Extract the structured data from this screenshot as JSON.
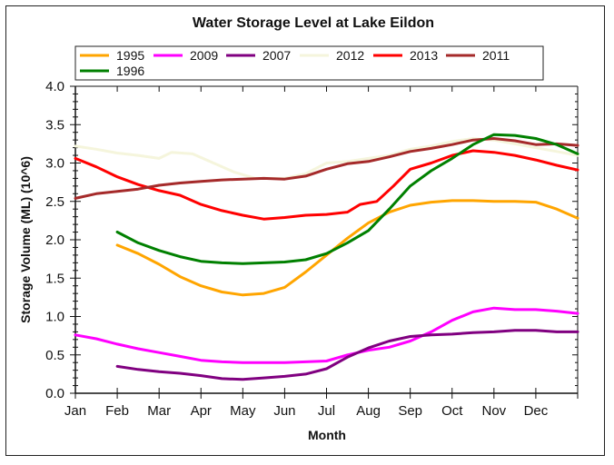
{
  "chart_data": {
    "type": "line",
    "title": "Water Storage Level at Lake Eildon",
    "xlabel": "Month",
    "ylabel": "Storage Volume (ML) (10^6)",
    "x_categories": [
      "Jan",
      "Feb",
      "Mar",
      "Apr",
      "May",
      "Jun",
      "Jul",
      "Aug",
      "Sep",
      "Oct",
      "Nov",
      "Dec"
    ],
    "xlim": [
      0,
      12
    ],
    "ylim": [
      0,
      4.0
    ],
    "y_ticks": [
      "0.0",
      "0.5",
      "1.0",
      "1.5",
      "2.0",
      "2.5",
      "3.0",
      "3.5",
      "4.0"
    ],
    "grid": false,
    "legend_position": "top",
    "series": [
      {
        "name": "1995",
        "color": "#FFA500",
        "points": [
          [
            1,
            1.93
          ],
          [
            1.5,
            1.82
          ],
          [
            2,
            1.68
          ],
          [
            2.5,
            1.52
          ],
          [
            3,
            1.4
          ],
          [
            3.5,
            1.32
          ],
          [
            4,
            1.28
          ],
          [
            4.5,
            1.3
          ],
          [
            5,
            1.38
          ],
          [
            5.5,
            1.58
          ],
          [
            6,
            1.8
          ],
          [
            6.5,
            2.02
          ],
          [
            7,
            2.22
          ],
          [
            7.5,
            2.36
          ],
          [
            8,
            2.45
          ],
          [
            8.5,
            2.49
          ],
          [
            9,
            2.51
          ],
          [
            9.5,
            2.51
          ],
          [
            10,
            2.5
          ],
          [
            10.5,
            2.5
          ],
          [
            11,
            2.49
          ],
          [
            11.5,
            2.4
          ],
          [
            12,
            2.28
          ]
        ]
      },
      {
        "name": "2009",
        "color": "#FF00FF",
        "points": [
          [
            0,
            0.76
          ],
          [
            0.5,
            0.71
          ],
          [
            1,
            0.64
          ],
          [
            1.5,
            0.58
          ],
          [
            2,
            0.53
          ],
          [
            2.5,
            0.48
          ],
          [
            3,
            0.43
          ],
          [
            3.5,
            0.41
          ],
          [
            4,
            0.4
          ],
          [
            4.5,
            0.4
          ],
          [
            5,
            0.4
          ],
          [
            5.5,
            0.41
          ],
          [
            6,
            0.42
          ],
          [
            6.5,
            0.5
          ],
          [
            7,
            0.56
          ],
          [
            7.5,
            0.6
          ],
          [
            8,
            0.68
          ],
          [
            8.5,
            0.8
          ],
          [
            9,
            0.95
          ],
          [
            9.5,
            1.06
          ],
          [
            10,
            1.11
          ],
          [
            10.5,
            1.09
          ],
          [
            11,
            1.09
          ],
          [
            11.5,
            1.07
          ],
          [
            12,
            1.04
          ]
        ]
      },
      {
        "name": "2007",
        "color": "#800080",
        "points": [
          [
            1,
            0.35
          ],
          [
            1.5,
            0.31
          ],
          [
            2,
            0.28
          ],
          [
            2.5,
            0.26
          ],
          [
            3,
            0.23
          ],
          [
            3.5,
            0.19
          ],
          [
            4,
            0.18
          ],
          [
            4.5,
            0.2
          ],
          [
            5,
            0.22
          ],
          [
            5.5,
            0.25
          ],
          [
            6,
            0.32
          ],
          [
            6.5,
            0.47
          ],
          [
            7,
            0.59
          ],
          [
            7.5,
            0.68
          ],
          [
            8,
            0.74
          ],
          [
            8.5,
            0.76
          ],
          [
            9,
            0.77
          ],
          [
            9.5,
            0.79
          ],
          [
            10,
            0.8
          ],
          [
            10.5,
            0.82
          ],
          [
            11,
            0.82
          ],
          [
            11.5,
            0.8
          ],
          [
            12,
            0.8
          ]
        ]
      },
      {
        "name": "2012",
        "color": "#F5F5DC",
        "points": [
          [
            0,
            3.22
          ],
          [
            0.5,
            3.18
          ],
          [
            1,
            3.13
          ],
          [
            1.5,
            3.1
          ],
          [
            2,
            3.06
          ],
          [
            2.3,
            3.14
          ],
          [
            2.8,
            3.12
          ],
          [
            3.3,
            3.0
          ],
          [
            3.8,
            2.88
          ],
          [
            4.3,
            2.8
          ],
          [
            5,
            2.8
          ],
          [
            5.5,
            2.86
          ],
          [
            6,
            3.0
          ],
          [
            6.5,
            3.02
          ],
          [
            7,
            3.06
          ],
          [
            7.5,
            3.1
          ],
          [
            8,
            3.18
          ],
          [
            8.5,
            3.22
          ],
          [
            9,
            3.28
          ],
          [
            9.5,
            3.32
          ],
          [
            10,
            3.3
          ],
          [
            10.5,
            3.25
          ],
          [
            11,
            3.2
          ],
          [
            11.5,
            3.15
          ],
          [
            12,
            3.1
          ]
        ]
      },
      {
        "name": "2013",
        "color": "#FF0000",
        "points": [
          [
            0,
            3.06
          ],
          [
            0.5,
            2.95
          ],
          [
            1,
            2.82
          ],
          [
            1.5,
            2.72
          ],
          [
            2,
            2.64
          ],
          [
            2.5,
            2.58
          ],
          [
            3,
            2.46
          ],
          [
            3.5,
            2.38
          ],
          [
            4,
            2.32
          ],
          [
            4.5,
            2.27
          ],
          [
            5,
            2.29
          ],
          [
            5.5,
            2.32
          ],
          [
            6,
            2.33
          ],
          [
            6.5,
            2.36
          ],
          [
            6.8,
            2.46
          ],
          [
            7.2,
            2.5
          ],
          [
            7.6,
            2.7
          ],
          [
            8,
            2.92
          ],
          [
            8.5,
            3.0
          ],
          [
            9,
            3.1
          ],
          [
            9.5,
            3.16
          ],
          [
            10,
            3.14
          ],
          [
            10.5,
            3.1
          ],
          [
            11,
            3.04
          ],
          [
            11.5,
            2.97
          ],
          [
            12,
            2.91
          ]
        ]
      },
      {
        "name": "2011",
        "color": "#A52A2A",
        "points": [
          [
            0,
            2.54
          ],
          [
            0.5,
            2.6
          ],
          [
            1,
            2.63
          ],
          [
            1.5,
            2.66
          ],
          [
            2,
            2.71
          ],
          [
            2.5,
            2.74
          ],
          [
            3,
            2.76
          ],
          [
            3.5,
            2.78
          ],
          [
            4,
            2.79
          ],
          [
            4.5,
            2.8
          ],
          [
            5,
            2.79
          ],
          [
            5.5,
            2.83
          ],
          [
            6,
            2.92
          ],
          [
            6.5,
            2.99
          ],
          [
            7,
            3.02
          ],
          [
            7.5,
            3.08
          ],
          [
            8,
            3.15
          ],
          [
            8.5,
            3.19
          ],
          [
            9,
            3.24
          ],
          [
            9.5,
            3.3
          ],
          [
            10,
            3.32
          ],
          [
            10.5,
            3.29
          ],
          [
            11,
            3.24
          ],
          [
            11.5,
            3.25
          ],
          [
            12,
            3.23
          ]
        ]
      },
      {
        "name": "1996",
        "color": "#008000",
        "points": [
          [
            1,
            2.1
          ],
          [
            1.5,
            1.96
          ],
          [
            2,
            1.86
          ],
          [
            2.5,
            1.78
          ],
          [
            3,
            1.72
          ],
          [
            3.5,
            1.7
          ],
          [
            4,
            1.69
          ],
          [
            4.5,
            1.7
          ],
          [
            5,
            1.71
          ],
          [
            5.5,
            1.74
          ],
          [
            6,
            1.82
          ],
          [
            6.5,
            1.96
          ],
          [
            7,
            2.12
          ],
          [
            7.5,
            2.4
          ],
          [
            8,
            2.7
          ],
          [
            8.5,
            2.9
          ],
          [
            9,
            3.06
          ],
          [
            9.5,
            3.24
          ],
          [
            10,
            3.37
          ],
          [
            10.5,
            3.36
          ],
          [
            11,
            3.32
          ],
          [
            11.5,
            3.24
          ],
          [
            12,
            3.12
          ]
        ]
      }
    ]
  }
}
